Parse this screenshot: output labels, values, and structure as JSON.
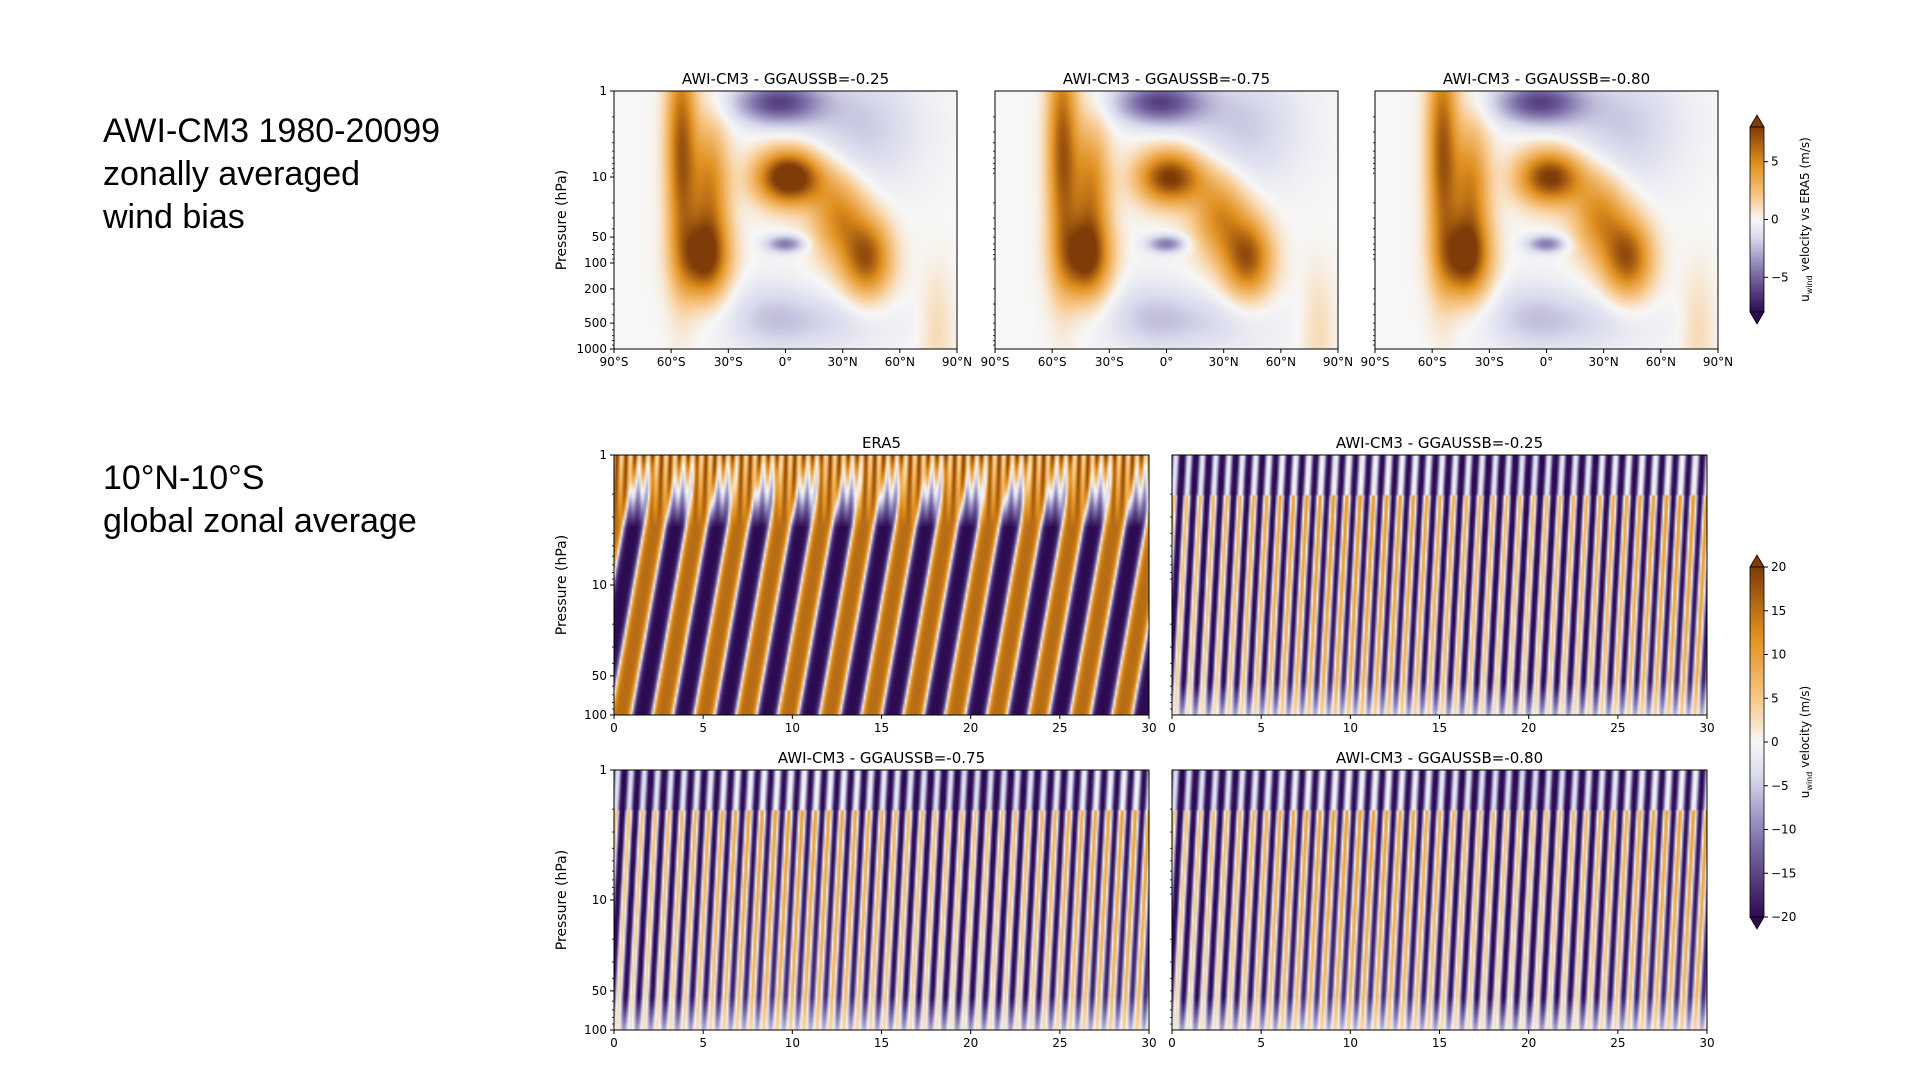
{
  "slide": {
    "section1_lines": [
      "AWI-CM3 1980-20099",
      "zonally averaged",
      "wind bias"
    ],
    "section2_lines": [
      "10°N-10°S",
      "global zonal average"
    ]
  },
  "colors": {
    "purple_dark": "#2d0b52",
    "purple_mid": "#8073ac",
    "purple_light": "#d8d9ec",
    "white": "#f7f7f7",
    "orange_light": "#f8c88a",
    "orange_mid": "#e0901e",
    "orange_dark": "#7f3b08"
  },
  "chart_data": [
    {
      "id": "bias-1",
      "type": "heatmap",
      "title": "AWI-CM3 - GGAUSSB=-0.25",
      "ylabel": "Pressure (hPa)",
      "x_ticklabels": [
        "90°S",
        "60°S",
        "30°S",
        "0°",
        "30°N",
        "60°N",
        "90°N"
      ],
      "x_ticks": [
        -90,
        -60,
        -30,
        0,
        30,
        60,
        90
      ],
      "xlim": [
        -90,
        90
      ],
      "y_ticks": [
        1,
        10,
        50,
        100,
        200,
        500,
        1000
      ],
      "ylim": [
        1000,
        1
      ],
      "y_scale": "log",
      "strength": 1.15,
      "colorbar": "bias"
    },
    {
      "id": "bias-2",
      "type": "heatmap",
      "title": "AWI-CM3 - GGAUSSB=-0.75",
      "ylabel": "",
      "x_ticklabels": [
        "90°S",
        "60°S",
        "30°S",
        "0°",
        "30°N",
        "60°N",
        "90°N"
      ],
      "x_ticks": [
        -90,
        -60,
        -30,
        0,
        30,
        60,
        90
      ],
      "xlim": [
        -90,
        90
      ],
      "y_scale": "log",
      "strength": 0.95,
      "colorbar": "bias"
    },
    {
      "id": "bias-3",
      "type": "heatmap",
      "title": "AWI-CM3 - GGAUSSB=-0.80",
      "ylabel": "",
      "x_ticklabels": [
        "90°S",
        "60°S",
        "30°S",
        "0°",
        "30°N",
        "60°N",
        "90°N"
      ],
      "x_ticks": [
        -90,
        -60,
        -30,
        0,
        30,
        60,
        90
      ],
      "xlim": [
        -90,
        90
      ],
      "y_scale": "log",
      "strength": 0.95,
      "colorbar": "bias"
    },
    {
      "id": "qbo-era5",
      "type": "heatmap",
      "title": "ERA5",
      "ylabel": "Pressure (hPa)",
      "x_ticks": [
        0,
        5,
        10,
        15,
        20,
        25,
        30
      ],
      "xlim": [
        0,
        30
      ],
      "y_ticks": [
        1,
        10,
        50,
        100
      ],
      "ylim": [
        100,
        1
      ],
      "y_scale": "log",
      "period_years": 2.35,
      "amplitude": 1.0,
      "colorbar": "wind"
    },
    {
      "id": "qbo-025",
      "type": "heatmap",
      "title": "AWI-CM3 - GGAUSSB=-0.25",
      "ylabel": "",
      "x_ticks": [
        0,
        5,
        10,
        15,
        20,
        25,
        30
      ],
      "xlim": [
        0,
        30
      ],
      "y_scale": "log",
      "period_years": 0.75,
      "amplitude": 0.6,
      "colorbar": "wind"
    },
    {
      "id": "qbo-075",
      "type": "heatmap",
      "title": "AWI-CM3 - GGAUSSB=-0.75",
      "ylabel": "Pressure (hPa)",
      "x_ticks": [
        0,
        5,
        10,
        15,
        20,
        25,
        30
      ],
      "xlim": [
        0,
        30
      ],
      "y_ticks": [
        1,
        10,
        50,
        100
      ],
      "ylim": [
        100,
        1
      ],
      "y_scale": "log",
      "period_years": 0.75,
      "amplitude": 0.55,
      "colorbar": "wind"
    },
    {
      "id": "qbo-080",
      "type": "heatmap",
      "title": "AWI-CM3 - GGAUSSB=-0.80",
      "ylabel": "",
      "x_ticks": [
        0,
        5,
        10,
        15,
        20,
        25,
        30
      ],
      "xlim": [
        0,
        30
      ],
      "y_scale": "log",
      "period_years": 0.75,
      "amplitude": 0.55,
      "colorbar": "wind"
    }
  ],
  "colorbars": {
    "bias": {
      "label": "velocity vs ERA5 (m/s)",
      "label_prefix": "u",
      "label_sub": "wind",
      "ticks": [
        5,
        0,
        -5
      ],
      "tick_labels": [
        "5",
        "0",
        "−5"
      ],
      "range": [
        -8,
        8
      ],
      "extend": "both"
    },
    "wind": {
      "label": "velocity (m/s)",
      "label_prefix": "u",
      "label_sub": "wind",
      "ticks": [
        20,
        15,
        10,
        5,
        0,
        -5,
        -10,
        -15,
        -20
      ],
      "tick_labels": [
        "20",
        "15",
        "10",
        "5",
        "0",
        "−5",
        "−10",
        "−15",
        "−20"
      ],
      "range": [
        -20,
        20
      ],
      "extend": "both"
    }
  }
}
